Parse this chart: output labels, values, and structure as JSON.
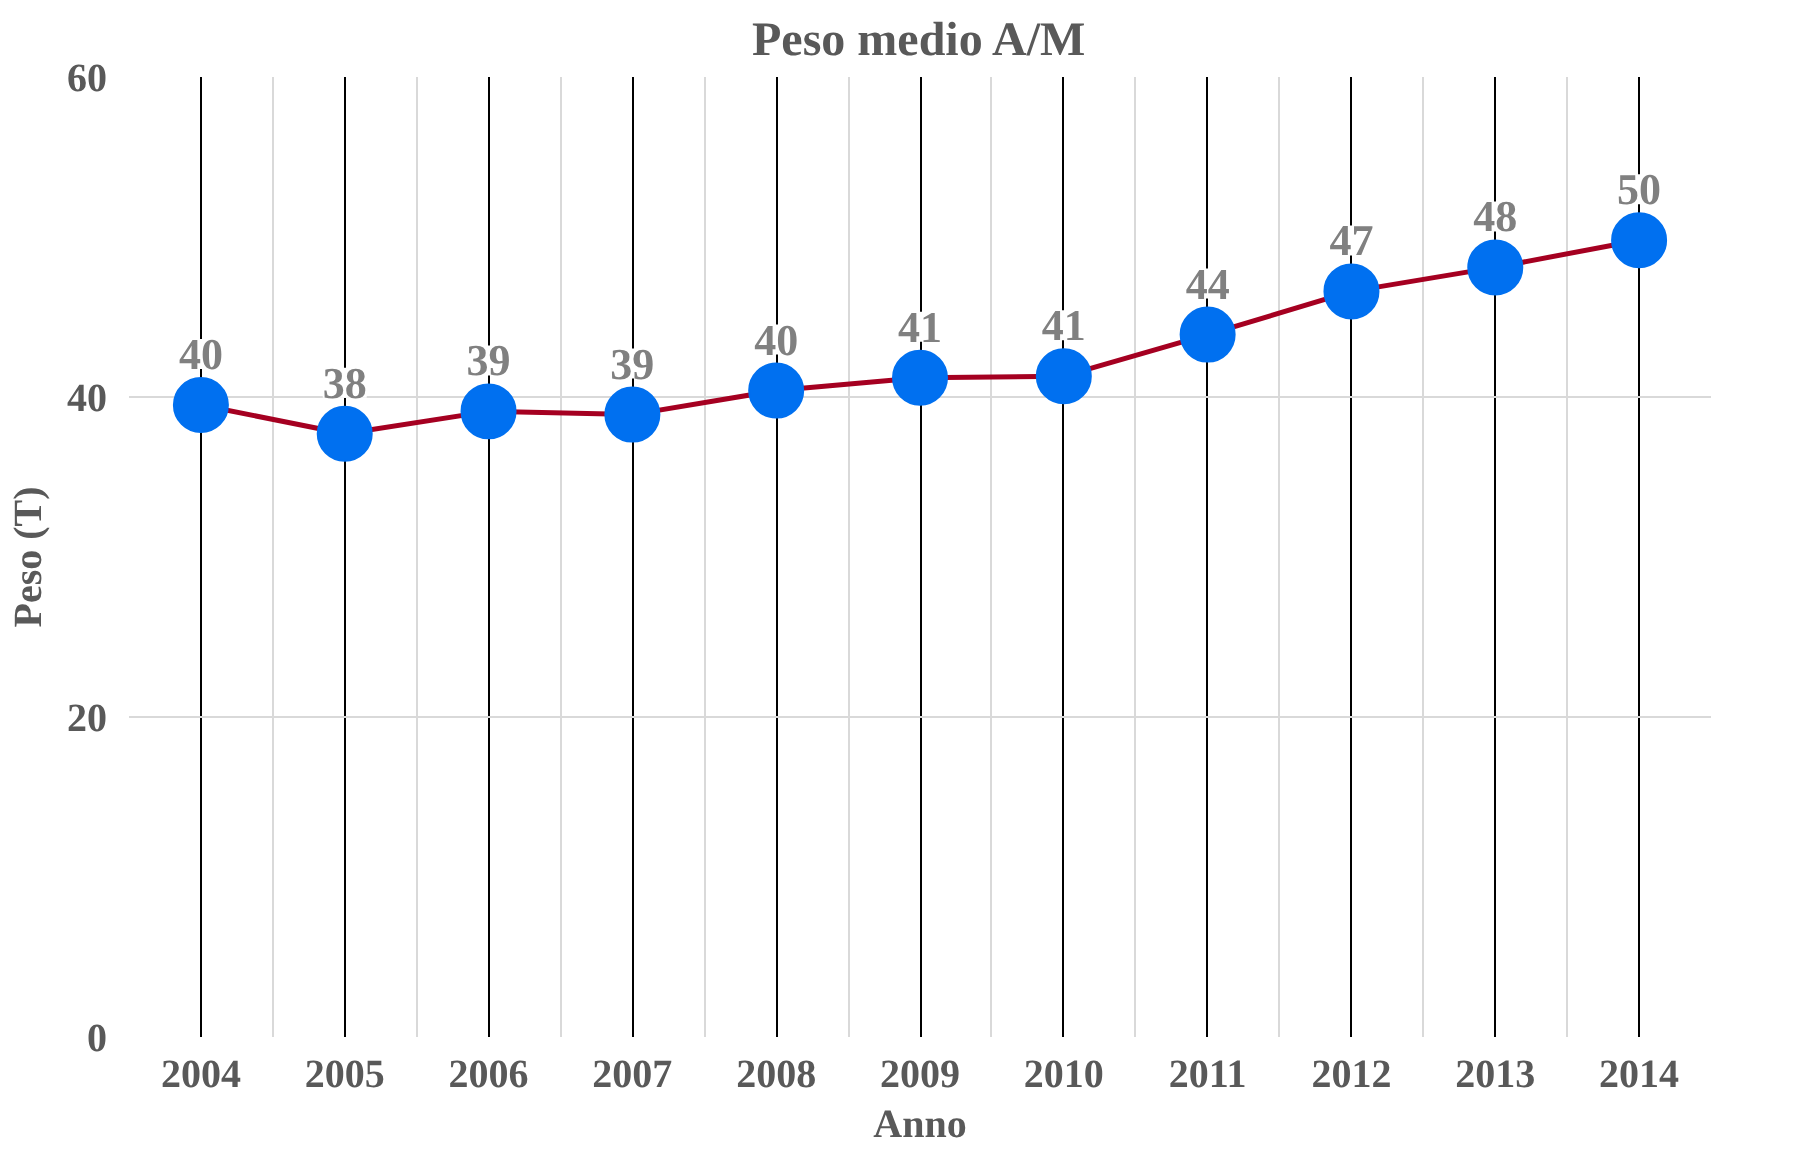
{
  "chart_data": {
    "type": "line",
    "title": "Peso medio A/M",
    "xlabel": "Anno",
    "ylabel": "Peso (T)",
    "categories": [
      "2004",
      "2005",
      "2006",
      "2007",
      "2008",
      "2009",
      "2010",
      "2011",
      "2012",
      "2013",
      "2014"
    ],
    "series": [
      {
        "color": "#a50021",
        "values": [
          39.5,
          37.7,
          39.1,
          38.9,
          40.4,
          41.2,
          41.3,
          43.9,
          46.6,
          48.1,
          49.8
        ],
        "value_labels": [
          "40",
          "38",
          "39",
          "39",
          "40",
          "41",
          "41",
          "44",
          "47",
          "48",
          "50"
        ],
        "colors": [
          "#0070f0",
          "#0070f0",
          "#0070f0",
          "#0070f0",
          "#0070f0",
          "#0070f0",
          "#0070f0",
          "#0070f0",
          "#0070f0",
          "#0070f0",
          "#0070f0"
        ]
      }
    ],
    "ylim": [
      0,
      60
    ],
    "yticks": [
      0,
      20,
      40,
      60
    ],
    "grid": true,
    "marker": "circle",
    "line_style": "solid"
  }
}
